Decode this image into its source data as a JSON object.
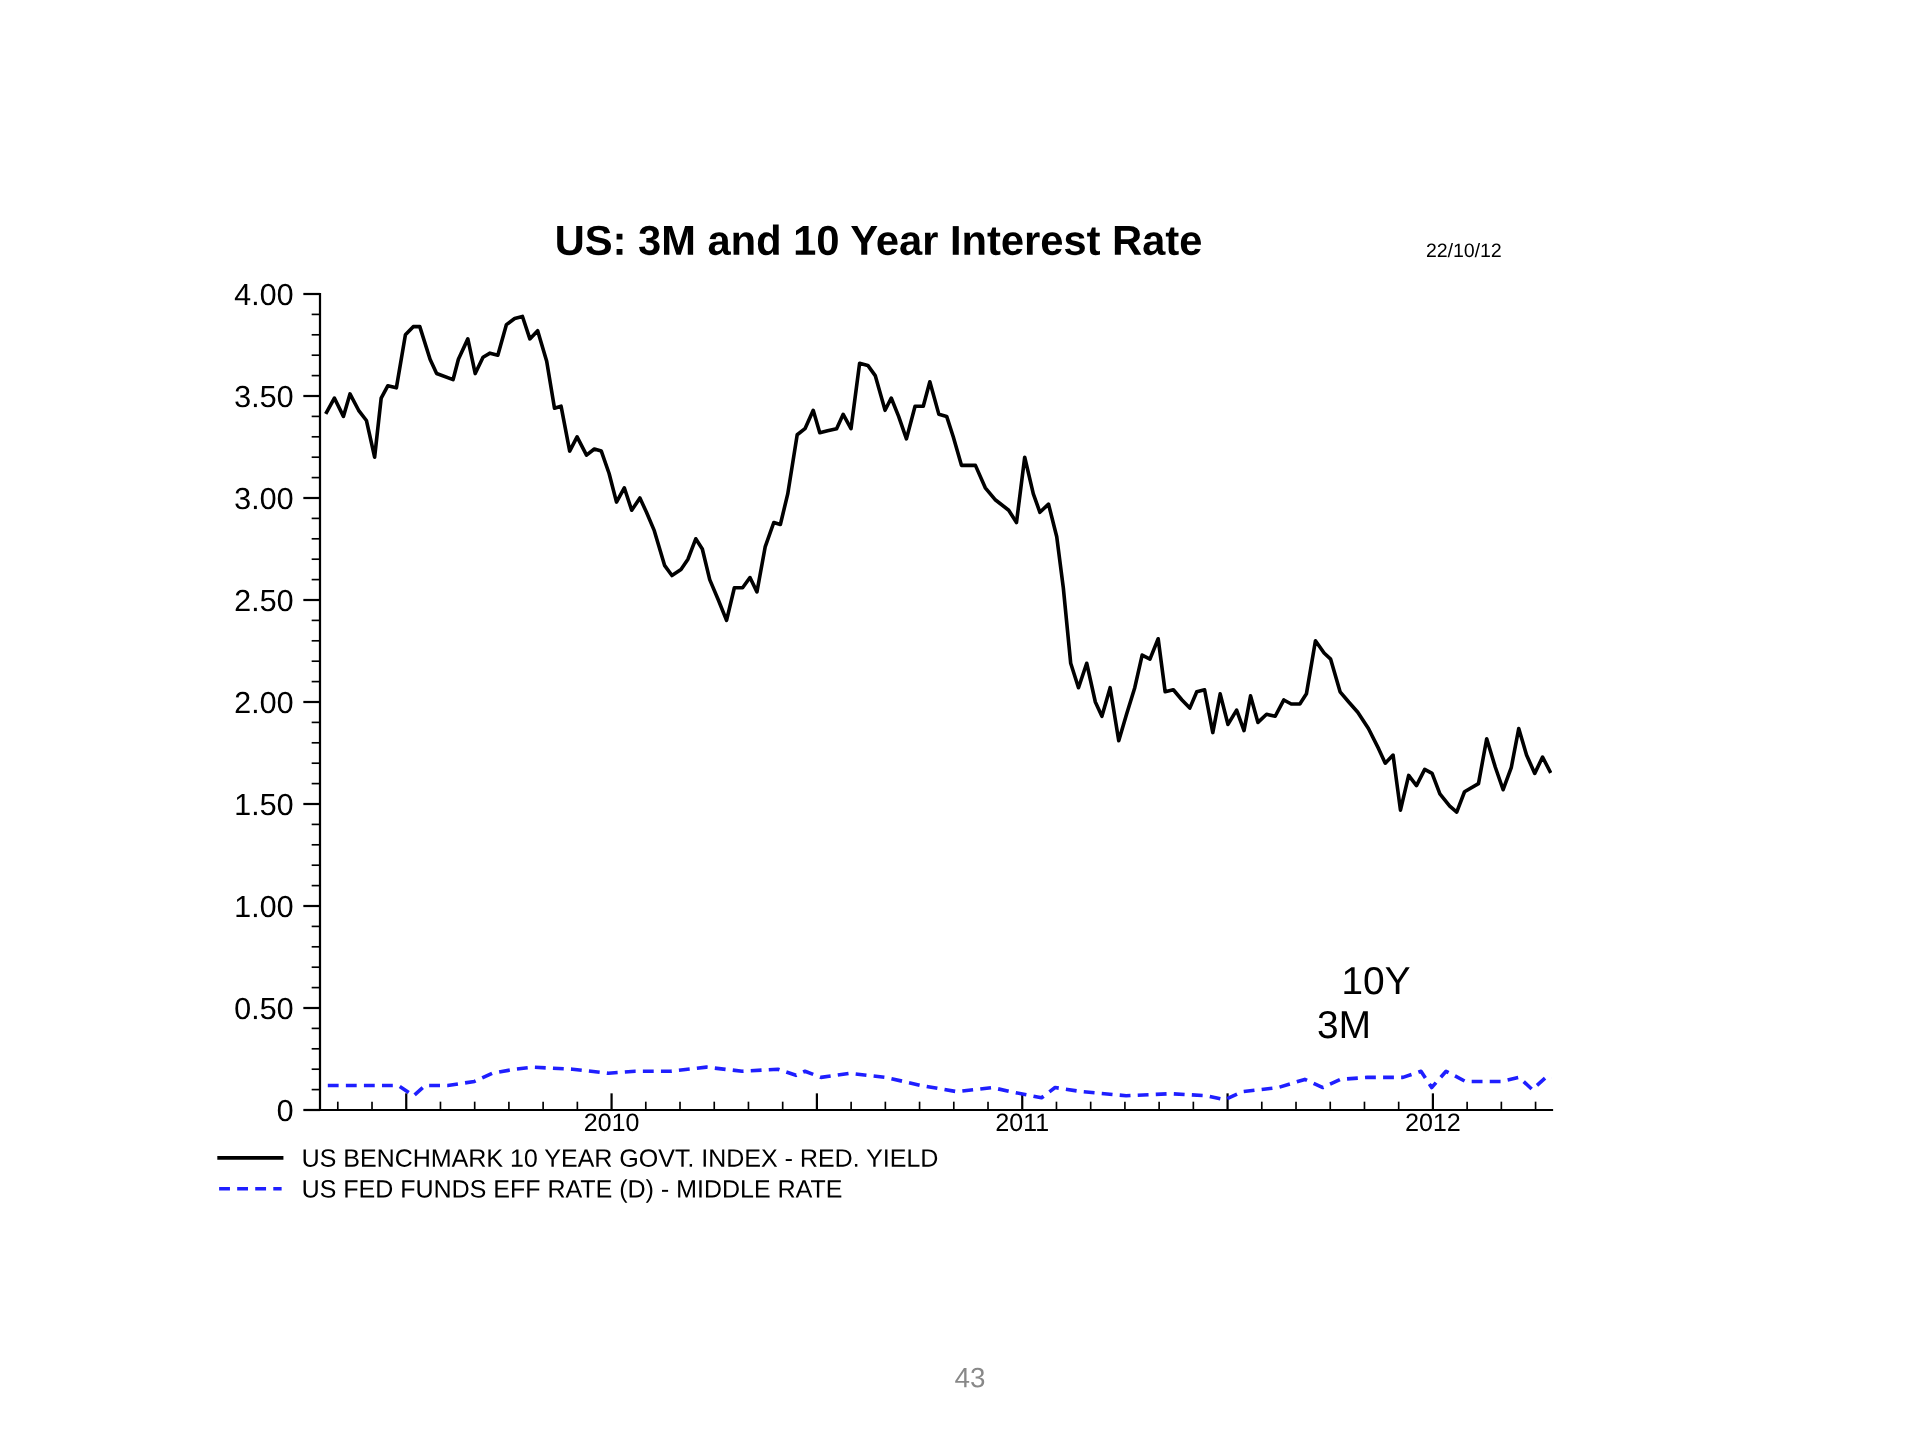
{
  "chart_data": {
    "type": "line",
    "title": "US: 3M and 10 Year Interest Rate",
    "annotations": [
      "22/10/12",
      "10Y",
      "3M",
      "43"
    ],
    "xlim": [
      2009.79,
      2012.79
    ],
    "xticks": [
      {
        "value": 2010,
        "label": null
      },
      {
        "value": 2010.5,
        "label": "2010"
      },
      {
        "value": 2011,
        "label": null
      },
      {
        "value": 2011.5,
        "label": "2011"
      },
      {
        "value": 2012,
        "label": null
      },
      {
        "value": 2012.5,
        "label": "2012"
      }
    ],
    "ylim": [
      0,
      4
    ],
    "yticks": [
      0,
      {
        "value": 0.5,
        "label": "0.50"
      },
      {
        "value": 1,
        "label": "1.00"
      },
      {
        "value": 1.5,
        "label": "1.50"
      },
      {
        "value": 2,
        "label": "2.00"
      },
      {
        "value": 2.5,
        "label": "2.50"
      },
      {
        "value": 3,
        "label": "3.00"
      },
      {
        "value": 3.5,
        "label": "3.50"
      },
      {
        "value": 4,
        "label": "4.00"
      }
    ],
    "grid": false,
    "legend": "bottom left",
    "series": [
      {
        "name": "US BENCHMARK 10 YEAR GOVT. INDEX - RED. YIELD",
        "color": "#000000",
        "line_style": "solid",
        "x": [
          2009.806,
          2009.825,
          2009.847,
          2009.863,
          2009.884,
          2009.903,
          2009.923,
          2009.939,
          2009.955,
          2009.976,
          2009.998,
          2010.017,
          2010.033,
          2010.058,
          2010.074,
          2010.114,
          2010.127,
          2010.15,
          2010.168,
          2010.187,
          2010.204,
          2010.223,
          2010.244,
          2010.264,
          2010.283,
          2010.301,
          2010.32,
          2010.342,
          2010.361,
          2010.377,
          2010.398,
          2010.416,
          2010.439,
          2010.458,
          2010.475,
          2010.494,
          2010.512,
          2010.531,
          2010.549,
          2010.569,
          2010.585,
          2010.604,
          2010.629,
          2010.647,
          2010.669,
          2010.686,
          2010.705,
          2010.721,
          2010.739,
          2010.76,
          2010.78,
          2010.799,
          2010.819,
          2010.837,
          2010.854,
          2010.874,
          2010.895,
          2010.911,
          2010.929,
          2010.952,
          2010.971,
          2010.991,
          2011.007,
          2011.026,
          2011.048,
          2011.064,
          2011.083,
          2011.104,
          2011.124,
          2011.142,
          2011.166,
          2011.181,
          2011.199,
          2011.218,
          2011.239,
          2011.259,
          2011.275,
          2011.297,
          2011.316,
          2011.332,
          2011.352,
          2011.386,
          2011.41,
          2011.435,
          2011.467,
          2011.486,
          2011.506,
          2011.527,
          2011.543,
          2011.564,
          2011.584,
          2011.6,
          2011.618,
          2011.637,
          2011.657,
          2011.678,
          2011.694,
          2011.714,
          2011.735,
          2011.754,
          2011.774,
          2011.792,
          2011.811,
          2011.831,
          2011.848,
          2011.868,
          2011.889,
          2011.908,
          2011.925,
          2011.944,
          2011.964,
          2011.982,
          2012.001,
          2012.022,
          2012.04,
          2012.056,
          2012.074,
          2012.095,
          2012.116,
          2012.137,
          2012.155,
          2012.176,
          2012.192,
          2012.214,
          2012.235,
          2012.251,
          2012.274,
          2012.295,
          2012.317,
          2012.343,
          2012.368,
          2012.384,
          2012.403,
          2012.421,
          2012.441,
          2012.46,
          2012.48,
          2012.498,
          2012.517,
          2012.541,
          2012.558,
          2012.577,
          2012.611,
          2012.631,
          2012.652,
          2012.671,
          2012.691,
          2012.709,
          2012.728,
          2012.748,
          2012.767,
          2012.785
        ],
        "values": [
          3.42,
          3.49,
          3.4,
          3.51,
          3.43,
          3.38,
          3.2,
          3.49,
          3.55,
          3.54,
          3.8,
          3.84,
          3.84,
          3.68,
          3.61,
          3.58,
          3.68,
          3.78,
          3.61,
          3.69,
          3.71,
          3.7,
          3.85,
          3.88,
          3.89,
          3.78,
          3.82,
          3.67,
          3.44,
          3.45,
          3.23,
          3.3,
          3.21,
          3.24,
          3.23,
          3.12,
          2.98,
          3.05,
          2.94,
          3.0,
          2.93,
          2.84,
          2.67,
          2.62,
          2.65,
          2.7,
          2.8,
          2.75,
          2.6,
          2.5,
          2.4,
          2.56,
          2.56,
          2.61,
          2.54,
          2.76,
          2.88,
          2.87,
          3.02,
          3.31,
          3.34,
          3.43,
          3.32,
          3.33,
          3.34,
          3.41,
          3.34,
          3.66,
          3.65,
          3.6,
          3.43,
          3.49,
          3.4,
          3.29,
          3.45,
          3.45,
          3.57,
          3.41,
          3.4,
          3.3,
          3.16,
          3.16,
          3.05,
          2.99,
          2.94,
          2.88,
          3.2,
          3.02,
          2.93,
          2.97,
          2.81,
          2.56,
          2.19,
          2.07,
          2.19,
          2.0,
          1.93,
          2.07,
          1.81,
          1.94,
          2.07,
          2.23,
          2.21,
          2.31,
          2.05,
          2.06,
          2.01,
          1.97,
          2.05,
          2.06,
          1.85,
          2.04,
          1.89,
          1.96,
          1.86,
          2.03,
          1.9,
          1.94,
          1.93,
          2.01,
          1.99,
          1.99,
          2.04,
          2.3,
          2.24,
          2.21,
          2.05,
          2.0,
          1.95,
          1.87,
          1.77,
          1.7,
          1.74,
          1.47,
          1.64,
          1.59,
          1.67,
          1.65,
          1.55,
          1.49,
          1.46,
          1.56,
          1.6,
          1.82,
          1.68,
          1.57,
          1.68,
          1.87,
          1.74,
          1.65,
          1.73,
          1.66
        ]
      },
      {
        "name": "US FED FUNDS EFF RATE (D) - MIDDLE RATE",
        "color": "#1f1fff",
        "line_style": "dashed",
        "x": [
          2009.809,
          2009.905,
          2009.981,
          2010.018,
          2010.046,
          2010.101,
          2010.166,
          2010.209,
          2010.264,
          2010.307,
          2010.405,
          2010.492,
          2010.557,
          2010.644,
          2010.731,
          2010.818,
          2010.905,
          2010.949,
          2010.971,
          2011.01,
          2011.08,
          2011.167,
          2011.254,
          2011.34,
          2011.427,
          2011.471,
          2011.547,
          2011.58,
          2011.645,
          2011.753,
          2011.862,
          2011.949,
          2011.993,
          2012.036,
          2012.123,
          2012.188,
          2012.232,
          2012.275,
          2012.34,
          2012.427,
          2012.471,
          2012.497,
          2012.532,
          2012.579,
          2012.666,
          2012.71,
          2012.742,
          2012.775,
          2012.79
        ],
        "values": [
          0.12,
          0.12,
          0.12,
          0.07,
          0.12,
          0.12,
          0.14,
          0.18,
          0.2,
          0.21,
          0.2,
          0.18,
          0.19,
          0.19,
          0.21,
          0.19,
          0.2,
          0.17,
          0.19,
          0.16,
          0.18,
          0.16,
          0.12,
          0.09,
          0.11,
          0.09,
          0.06,
          0.11,
          0.09,
          0.07,
          0.08,
          0.07,
          0.05,
          0.09,
          0.11,
          0.15,
          0.11,
          0.15,
          0.16,
          0.16,
          0.19,
          0.11,
          0.19,
          0.14,
          0.14,
          0.16,
          0.1,
          0.16,
          0.16
        ]
      }
    ]
  }
}
